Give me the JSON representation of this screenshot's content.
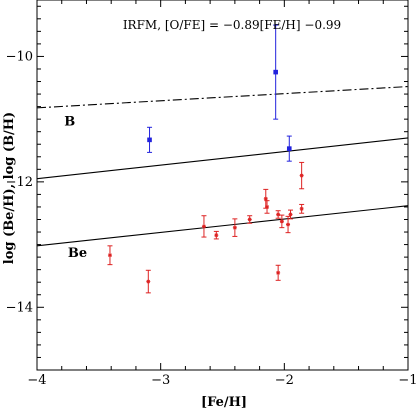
{
  "chart_data": {
    "type": "scatter",
    "title": "",
    "annotation": "IRFM, [O/FE] = −0.89[FE/H] −0.99",
    "xlabel": "[Fe/H]",
    "ylabel": "log (Be/H), log (B/H)",
    "xlim": [
      -4,
      -1
    ],
    "ylim": [
      -15,
      -9.1
    ],
    "xticks": [
      -4,
      -3,
      -2,
      -1
    ],
    "yticks": [
      -10,
      -12,
      -14
    ],
    "grid": false,
    "series": [
      {
        "color": "#2222dd",
        "marker": "square",
        "points": [
          {
            "x": -3.09,
            "y": -11.33,
            "err": 0.2
          },
          {
            "x": -2.07,
            "y": -10.25,
            "err": 0.75
          },
          {
            "x": -1.96,
            "y": -11.47,
            "err": 0.2
          }
        ]
      },
      {
        "color": "#dd2222",
        "marker": "star",
        "points": [
          {
            "x": -3.41,
            "y": -13.17,
            "err": 0.15
          },
          {
            "x": -3.1,
            "y": -13.59,
            "err": 0.18
          },
          {
            "x": -2.65,
            "y": -12.71,
            "err": 0.17
          },
          {
            "x": -2.55,
            "y": -12.85,
            "err": 0.06
          },
          {
            "x": -2.4,
            "y": -12.73,
            "err": 0.14
          },
          {
            "x": -2.28,
            "y": -12.6,
            "err": 0.06
          },
          {
            "x": -2.15,
            "y": -12.27,
            "err": 0.15
          },
          {
            "x": -2.14,
            "y": -12.4,
            "err": 0.1
          },
          {
            "x": -2.05,
            "y": -13.45,
            "err": 0.12
          },
          {
            "x": -2.05,
            "y": -12.52,
            "err": 0.06
          },
          {
            "x": -2.02,
            "y": -12.63,
            "err": 0.1
          },
          {
            "x": -1.97,
            "y": -12.68,
            "err": 0.13
          },
          {
            "x": -1.95,
            "y": -12.52,
            "err": 0.07
          },
          {
            "x": -1.86,
            "y": -11.9,
            "err": 0.21
          },
          {
            "x": -1.86,
            "y": -12.43,
            "err": 0.07
          }
        ]
      }
    ],
    "lines": [
      {
        "label": "B",
        "style": "dashdot",
        "x": [
          -4,
          -1
        ],
        "y": [
          -10.82,
          -10.48
        ]
      },
      {
        "label": "",
        "style": "solid",
        "x": [
          -4,
          -1
        ],
        "y": [
          -11.95,
          -11.3
        ]
      },
      {
        "label": "Be",
        "style": "solid",
        "x": [
          -4,
          -1
        ],
        "y": [
          -13.02,
          -12.38
        ]
      }
    ],
    "line_labels": [
      {
        "text": "B",
        "x": -3.78,
        "y": -11.1
      },
      {
        "text": "Be",
        "x": -3.75,
        "y": -13.2
      }
    ]
  }
}
